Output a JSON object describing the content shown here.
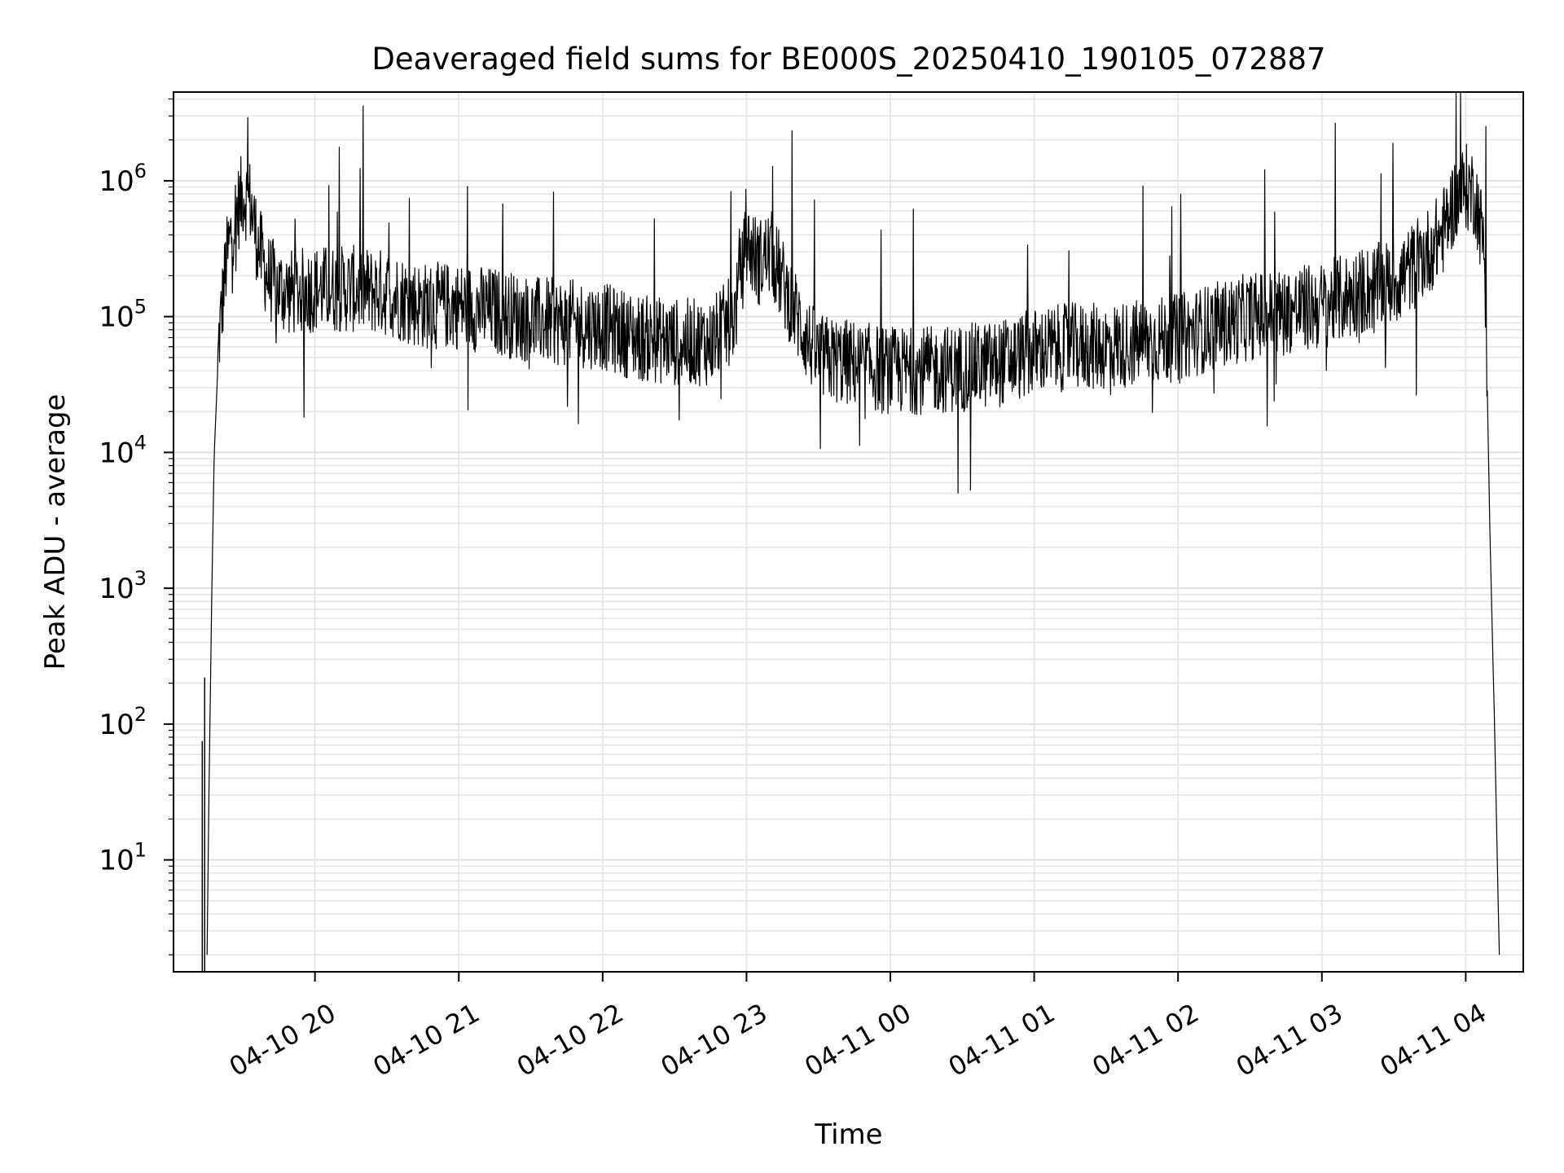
{
  "chart_data": {
    "type": "line",
    "title": "Deaveraged field sums for BE000S_20250410_190105_072887",
    "xlabel": "Time",
    "ylabel": "Peak ADU - average",
    "yscale": "log",
    "ylim": [
      1.5,
      4500000
    ],
    "xlim": [
      "2025-04-10 19:01",
      "2025-04-11 04:24"
    ],
    "x_ticks": [
      {
        "t": "2025-04-10 20:00",
        "label": "04-10 20"
      },
      {
        "t": "2025-04-10 21:00",
        "label": "04-10 21"
      },
      {
        "t": "2025-04-10 22:00",
        "label": "04-10 22"
      },
      {
        "t": "2025-04-10 23:00",
        "label": "04-10 23"
      },
      {
        "t": "2025-04-11 00:00",
        "label": "04-11 00"
      },
      {
        "t": "2025-04-11 01:00",
        "label": "04-11 01"
      },
      {
        "t": "2025-04-11 02:00",
        "label": "04-11 02"
      },
      {
        "t": "2025-04-11 03:00",
        "label": "04-11 03"
      },
      {
        "t": "2025-04-11 04:00",
        "label": "04-11 04"
      }
    ],
    "y_ticks": [
      {
        "value": 10,
        "base": "10",
        "exp": "1"
      },
      {
        "value": 100,
        "base": "10",
        "exp": "2"
      },
      {
        "value": 1000,
        "base": "10",
        "exp": "3"
      },
      {
        "value": 10000,
        "base": "10",
        "exp": "4"
      },
      {
        "value": 100000,
        "base": "10",
        "exp": "5"
      },
      {
        "value": 1000000,
        "base": "10",
        "exp": "6"
      }
    ],
    "grid": true,
    "grid_minor": true,
    "line_color": "#000000",
    "series": [
      {
        "x": [
          "2025-04-10 19:15",
          "2025-04-10 19:16",
          "2025-04-10 19:17",
          "2025-04-10 19:18",
          "2025-04-10 19:20",
          "2025-04-10 19:23",
          "2025-04-10 19:26",
          "2025-04-10 19:30",
          "2025-04-10 19:33",
          "2025-04-10 19:36",
          "2025-04-10 19:40",
          "2025-04-10 19:45",
          "2025-04-10 19:50",
          "2025-04-10 20:00",
          "2025-04-10 20:15",
          "2025-04-10 20:30",
          "2025-04-10 20:45",
          "2025-04-10 21:00",
          "2025-04-10 21:15",
          "2025-04-10 21:30",
          "2025-04-10 21:45",
          "2025-04-10 22:00",
          "2025-04-10 22:15",
          "2025-04-10 22:30",
          "2025-04-10 22:45",
          "2025-04-10 22:55",
          "2025-04-10 23:00",
          "2025-04-10 23:05",
          "2025-04-10 23:10",
          "2025-04-10 23:15",
          "2025-04-10 23:20",
          "2025-04-10 23:25",
          "2025-04-10 23:30",
          "2025-04-10 23:45",
          "2025-04-11 00:00",
          "2025-04-11 00:15",
          "2025-04-11 00:30",
          "2025-04-11 00:45",
          "2025-04-11 01:00",
          "2025-04-11 01:15",
          "2025-04-11 01:30",
          "2025-04-11 01:45",
          "2025-04-11 02:00",
          "2025-04-11 02:15",
          "2025-04-11 02:30",
          "2025-04-11 02:45",
          "2025-04-11 03:00",
          "2025-04-11 03:15",
          "2025-04-11 03:30",
          "2025-04-11 03:40",
          "2025-04-11 03:50",
          "2025-04-11 03:55",
          "2025-04-11 04:00",
          "2025-04-11 04:04",
          "2025-04-11 04:08",
          "2025-04-11 04:10",
          "2025-04-11 04:12",
          "2025-04-11 04:14"
        ],
        "y": [
          2,
          60,
          1000,
          10000,
          70000,
          250000,
          500000,
          800000,
          700000,
          350000,
          200000,
          160000,
          150000,
          160000,
          160000,
          150000,
          120000,
          120000,
          110000,
          95000,
          90000,
          85000,
          70000,
          65000,
          65000,
          100000,
          350000,
          250000,
          300000,
          180000,
          110000,
          70000,
          50000,
          45000,
          40000,
          40000,
          42000,
          45000,
          55000,
          60000,
          60000,
          65000,
          70000,
          85000,
          100000,
          110000,
          120000,
          150000,
          180000,
          250000,
          400000,
          700000,
          900000,
          800000,
          300000,
          3000,
          100,
          2
        ]
      }
    ]
  }
}
